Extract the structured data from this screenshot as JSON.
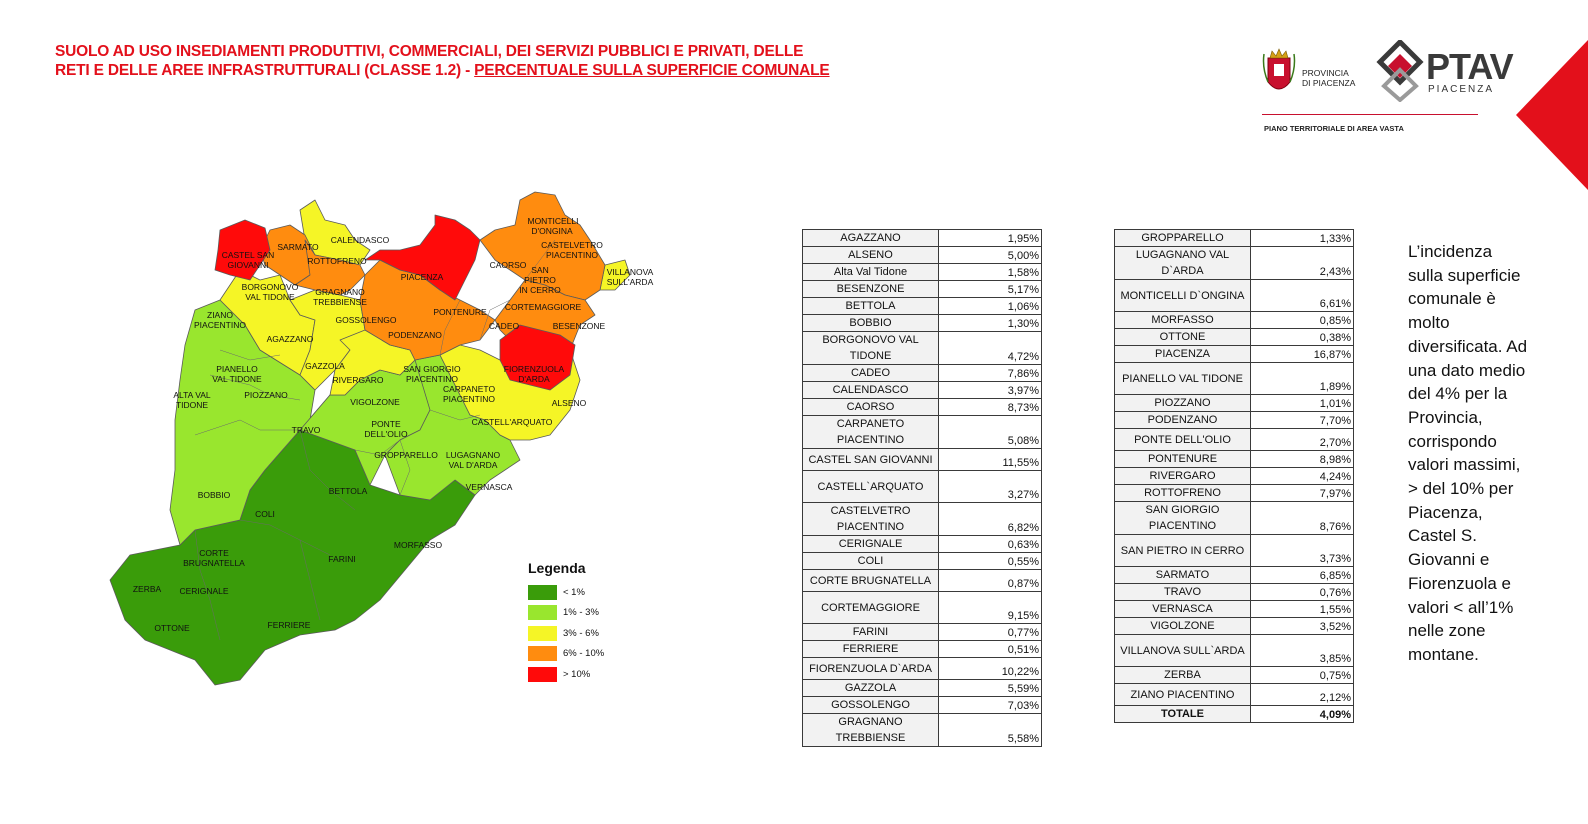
{
  "title": {
    "part1": "SUOLO AD USO INSEDIAMENTI PRODUTTIVI, COMMERCIALI, DEI SERVIZI PUBBLICI E PRIVATI, DELLE RETI E DELLE AREE INFRASTRUTTURALI (CLASSE 1.2)  - ",
    "part2": "PERCENTUALE SULLA SUPERFICIE COMUNALE"
  },
  "logos": {
    "provincia_line1": "PROVINCIA",
    "provincia_line2": "DI PIACENZA",
    "ptav": "PTAV",
    "ptav_sub": "PIACENZA",
    "caption": "PIANO TERRITORIALE DI AREA VASTA"
  },
  "colors": {
    "lt1": "#3a9c0a",
    "r1_3": "#99e62e",
    "r3_6": "#f5f526",
    "r6_10": "#ff8c0f",
    "gt10": "#ff0a0a",
    "accent": "#e3101b"
  },
  "legend": {
    "title": "Legenda",
    "items": [
      {
        "label": "< 1%",
        "color": "#3a9c0a"
      },
      {
        "label": "1% - 3%",
        "color": "#99e62e"
      },
      {
        "label": "3% - 6%",
        "color": "#f5f526"
      },
      {
        "label": "6% - 10%",
        "color": "#ff8c0f"
      },
      {
        "label": "> 10%",
        "color": "#ff0a0a"
      }
    ]
  },
  "map_labels": [
    "CASTEL SAN",
    "GIOVANNI",
    "SARMATO",
    "CALENDASCO",
    "ROTTOFRENO",
    "PIACENZA",
    "CAORSO",
    "MONTICELLI",
    "D'ONGINA",
    "CASTELVETRO",
    "PIACENTINO",
    "SAN",
    "PIETRO",
    "IN CERRO",
    "VILLANOVA",
    "SULL'ARDA",
    "BORGONOVO",
    "VAL TIDONE",
    "GRAGNANO",
    "TREBBIENSE",
    "ZIANO",
    "PIACENTINO",
    "GOSSOLENGO",
    "PONTENURE",
    "CORTEMAGGIORE",
    "CADEO",
    "BESENZONE",
    "PODENZANO",
    "AGAZZANO",
    "PIANELLO",
    "VAL TIDONE",
    "GAZZOLA",
    "RIVERGARO",
    "SAN GIORGIO",
    "PIACENTINO",
    "FIORENZUOLA",
    "D'ARDA",
    "CARPANETO",
    "PIACENTINO",
    "ALTA VAL",
    "TIDONE",
    "PIOZZANO",
    "VIGOLZONE",
    "ALSENO",
    "TRAVO",
    "PONTE",
    "DELL'OLIO",
    "CASTELL'ARQUATO",
    "GROPPARELLO",
    "LUGAGNANO",
    "VAL D'ARDA",
    "BOBBIO",
    "BETTOLA",
    "VERNASCA",
    "COLI",
    "CORTE",
    "BRUGNATELLA",
    "FARINI",
    "MORFASSO",
    "ZERBA",
    "CERIGNALE",
    "OTTONE",
    "FERRIERE"
  ],
  "table1": [
    {
      "name": "AGAZZANO",
      "value": "1,95%"
    },
    {
      "name": "ALSENO",
      "value": "5,00%"
    },
    {
      "name": "Alta Val Tidone",
      "value": "1,58%"
    },
    {
      "name": "BESENZONE",
      "value": "5,17%"
    },
    {
      "name": "BETTOLA",
      "value": "1,06%"
    },
    {
      "name": "BOBBIO",
      "value": "1,30%"
    },
    {
      "name": "BORGONOVO VAL TIDONE",
      "value": "4,72%"
    },
    {
      "name": "CADEO",
      "value": "7,86%"
    },
    {
      "name": "CALENDASCO",
      "value": "3,97%"
    },
    {
      "name": "CAORSO",
      "value": "8,73%"
    },
    {
      "name": "CARPANETO PIACENTINO",
      "value": "5,08%"
    },
    {
      "name": "CASTEL SAN GIOVANNI",
      "value": "11,55%"
    },
    {
      "name": "CASTELL`ARQUATO",
      "value": "3,27%"
    },
    {
      "name": "CASTELVETRO PIACENTINO",
      "value": "6,82%"
    },
    {
      "name": "CERIGNALE",
      "value": "0,63%"
    },
    {
      "name": "COLI",
      "value": "0,55%"
    },
    {
      "name": "CORTE BRUGNATELLA",
      "value": "0,87%"
    },
    {
      "name": "CORTEMAGGIORE",
      "value": "9,15%"
    },
    {
      "name": "FARINI",
      "value": "0,77%"
    },
    {
      "name": "FERRIERE",
      "value": "0,51%"
    },
    {
      "name": "FIORENZUOLA D`ARDA",
      "value": "10,22%"
    },
    {
      "name": "GAZZOLA",
      "value": "5,59%"
    },
    {
      "name": "GOSSOLENGO",
      "value": "7,03%"
    },
    {
      "name": "GRAGNANO TREBBIENSE",
      "value": "5,58%"
    }
  ],
  "table2": [
    {
      "name": "GROPPARELLO",
      "value": "1,33%"
    },
    {
      "name": "LUGAGNANO VAL D`ARDA",
      "value": "2,43%"
    },
    {
      "name": "MONTICELLI D`ONGINA",
      "value": "6,61%"
    },
    {
      "name": "MORFASSO",
      "value": "0,85%"
    },
    {
      "name": "OTTONE",
      "value": "0,38%"
    },
    {
      "name": "PIACENZA",
      "value": "16,87%"
    },
    {
      "name": "PIANELLO VAL TIDONE",
      "value": "1,89%"
    },
    {
      "name": "PIOZZANO",
      "value": "1,01%"
    },
    {
      "name": "PODENZANO",
      "value": "7,70%"
    },
    {
      "name": "PONTE DELL'OLIO",
      "value": "2,70%"
    },
    {
      "name": "PONTENURE",
      "value": "8,98%"
    },
    {
      "name": "RIVERGARO",
      "value": "4,24%"
    },
    {
      "name": "ROTTOFRENO",
      "value": "7,97%"
    },
    {
      "name": "SAN GIORGIO PIACENTINO",
      "value": "8,76%"
    },
    {
      "name": "SAN PIETRO IN CERRO",
      "value": "3,73%"
    },
    {
      "name": "SARMATO",
      "value": "6,85%"
    },
    {
      "name": "TRAVO",
      "value": "0,76%"
    },
    {
      "name": "VERNASCA",
      "value": "1,55%"
    },
    {
      "name": "VIGOLZONE",
      "value": "3,52%"
    },
    {
      "name": "VILLANOVA SULL`ARDA",
      "value": "3,85%"
    },
    {
      "name": "ZERBA",
      "value": "0,75%"
    },
    {
      "name": "ZIANO PIACENTINO",
      "value": "2,12%"
    },
    {
      "name": "TOTALE",
      "value": "4,09%"
    }
  ],
  "side_text": "L’incidenza sulla superficie comunale è molto diversificata. Ad una dato medio del 4% per la Provincia, corrispondo valori massimi, > del 10% per Piacenza, Castel S. Giovanni e Fiorenzuola e valori < all’1% nelle zone montane."
}
